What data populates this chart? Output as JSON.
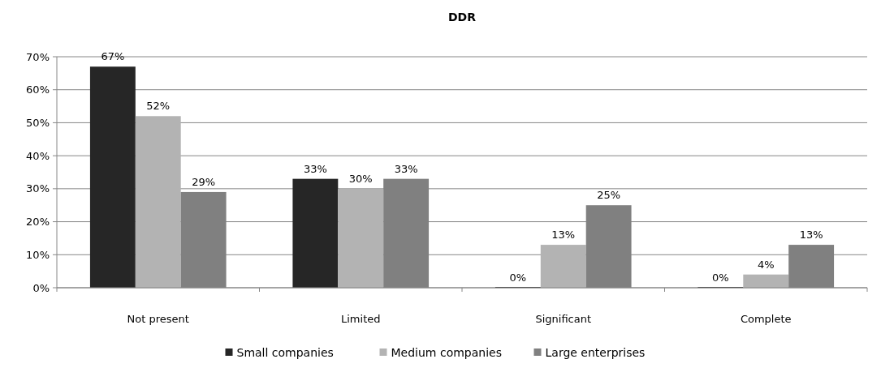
{
  "chart_data": {
    "type": "bar",
    "title": "DDR",
    "categories": [
      "Not present",
      "Limited",
      "Significant",
      "Complete"
    ],
    "series": [
      {
        "name": "Small companies",
        "color": "#262626",
        "values": [
          67,
          33,
          0,
          0
        ],
        "value_labels": [
          "67%",
          "33%",
          "0%",
          "0%"
        ]
      },
      {
        "name": "Medium companies",
        "color": "#b3b3b3",
        "values": [
          52,
          30,
          13,
          4
        ],
        "value_labels": [
          "52%",
          "30%",
          "13%",
          "4%"
        ]
      },
      {
        "name": "Large enterprises",
        "color": "#808080",
        "values": [
          29,
          33,
          25,
          13
        ],
        "value_labels": [
          "29%",
          "33%",
          "25%",
          "13%"
        ]
      }
    ],
    "ylim": [
      0,
      70
    ],
    "yticks": [
      {
        "value": 0,
        "label": "0%"
      },
      {
        "value": 10,
        "label": "10%"
      },
      {
        "value": 20,
        "label": "20%"
      },
      {
        "value": 30,
        "label": "30%"
      },
      {
        "value": 40,
        "label": "40%"
      },
      {
        "value": 50,
        "label": "50%"
      },
      {
        "value": 60,
        "label": "60%"
      },
      {
        "value": 70,
        "label": "70%"
      }
    ],
    "grid": "y",
    "legend": "bottom"
  }
}
